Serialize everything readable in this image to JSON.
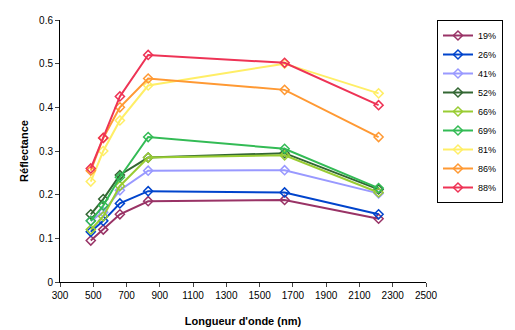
{
  "chart_data": {
    "type": "line",
    "x_label": "Longueur d'onde (nm)",
    "y_label": "Réflectance",
    "x": [
      485,
      560,
      660,
      830,
      1650,
      2215
    ],
    "series": [
      {
        "name": "19%",
        "color": "#993366",
        "values": [
          0.095,
          0.12,
          0.155,
          0.185,
          0.188,
          0.145
        ]
      },
      {
        "name": "26%",
        "color": "#0044cc",
        "values": [
          0.115,
          0.14,
          0.18,
          0.208,
          0.205,
          0.155
        ]
      },
      {
        "name": "41%",
        "color": "#9999ff",
        "values": [
          0.14,
          0.16,
          0.21,
          0.255,
          0.256,
          0.203
        ]
      },
      {
        "name": "52%",
        "color": "#336633",
        "values": [
          0.155,
          0.19,
          0.245,
          0.285,
          0.295,
          0.212
        ]
      },
      {
        "name": "66%",
        "color": "#99cc33",
        "values": [
          0.12,
          0.15,
          0.22,
          0.285,
          0.29,
          0.205
        ]
      },
      {
        "name": "69%",
        "color": "#33bb55",
        "values": [
          0.14,
          0.175,
          0.24,
          0.332,
          0.305,
          0.215
        ]
      },
      {
        "name": "81%",
        "color": "#ffee66",
        "values": [
          0.23,
          0.3,
          0.37,
          0.45,
          0.5,
          0.432
        ]
      },
      {
        "name": "86%",
        "color": "#ff9933",
        "values": [
          0.255,
          0.33,
          0.4,
          0.466,
          0.44,
          0.332
        ]
      },
      {
        "name": "88%",
        "color": "#ee3355",
        "values": [
          0.26,
          0.33,
          0.425,
          0.52,
          0.502,
          0.405
        ]
      }
    ],
    "xlim": [
      300,
      2500
    ],
    "xticks": [
      300,
      500,
      700,
      900,
      1100,
      1300,
      1500,
      1700,
      1900,
      2100,
      2300,
      2500
    ],
    "ylim": [
      0,
      0.6
    ],
    "yticks": [
      0,
      0.1,
      0.2,
      0.3,
      0.4,
      0.5,
      0.6
    ],
    "marker": "diamond-open",
    "grid": false,
    "legend": "right"
  }
}
